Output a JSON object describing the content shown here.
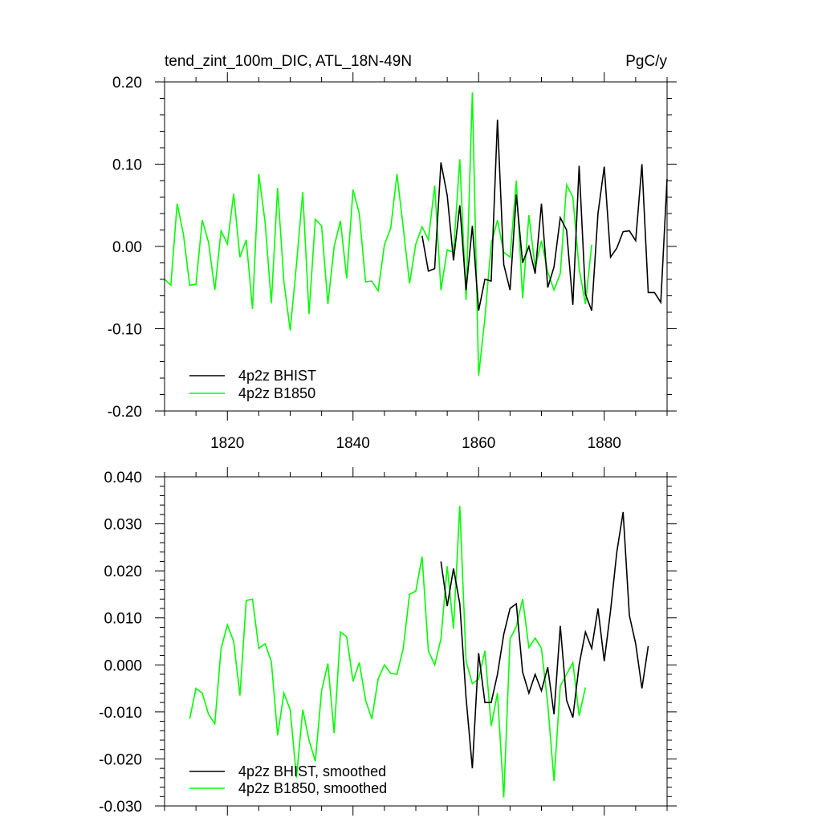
{
  "chart_data": [
    {
      "type": "line",
      "title": "tend_zint_100m_DIC, ATL_18N-49N",
      "units": "PgC/y",
      "xlim": [
        1810,
        1890
      ],
      "ylim": [
        -0.2,
        0.2
      ],
      "x_ticks": [
        1820,
        1840,
        1860,
        1880
      ],
      "x_tick_labels": [
        "1820",
        "1840",
        "1860",
        "1880"
      ],
      "y_ticks": [
        0.2,
        0.1,
        0.0,
        -0.1,
        -0.2
      ],
      "y_tick_labels": [
        "0.20",
        "0.10",
        "0.00",
        "-0.10",
        "-0.20"
      ],
      "legend_position": "bottom-left",
      "series": [
        {
          "name": "4p2z BHIST",
          "color": "#000000",
          "x_start": 1851,
          "values": [
            0.013,
            -0.03,
            -0.027,
            0.102,
            0.062,
            -0.017,
            0.05,
            -0.053,
            0.025,
            -0.078,
            -0.04,
            -0.042,
            0.154,
            -0.022,
            -0.053,
            0.063,
            -0.02,
            0.0,
            -0.033,
            0.052,
            -0.05,
            -0.025,
            0.035,
            0.02,
            -0.071,
            0.098,
            -0.058,
            -0.078,
            0.04,
            0.097,
            -0.013,
            -0.002,
            0.018,
            0.019,
            0.007,
            0.1,
            -0.056,
            -0.056,
            -0.068,
            0.082
          ]
        },
        {
          "name": "4p2z B1850",
          "color": "#00ff00",
          "x_start": 1810,
          "values": [
            -0.04,
            -0.047,
            0.052,
            0.015,
            -0.047,
            -0.046,
            0.032,
            0.005,
            -0.053,
            0.019,
            0.003,
            0.064,
            -0.013,
            0.008,
            -0.076,
            0.088,
            0.03,
            -0.069,
            0.071,
            -0.043,
            -0.102,
            -0.022,
            0.066,
            -0.082,
            0.033,
            0.025,
            -0.07,
            0.0,
            0.031,
            -0.039,
            0.069,
            0.04,
            -0.043,
            -0.042,
            -0.054,
            0.002,
            0.022,
            0.088,
            0.023,
            -0.045,
            0.003,
            0.024,
            0.008,
            0.074,
            -0.053,
            -0.004,
            -0.007,
            0.106,
            -0.065,
            0.187,
            -0.157,
            -0.087,
            0.003,
            0.032,
            -0.007,
            -0.013,
            0.08,
            -0.063,
            0.038,
            -0.026,
            0.007,
            -0.031,
            -0.053,
            -0.033,
            0.075,
            0.06,
            -0.027,
            -0.07,
            0.002
          ]
        }
      ]
    },
    {
      "type": "line",
      "xlim": [
        1810,
        1890
      ],
      "ylim": [
        -0.03,
        0.04
      ],
      "x_ticks": [
        1820,
        1840,
        1860,
        1880
      ],
      "y_ticks": [
        0.04,
        0.03,
        0.02,
        0.01,
        0.0,
        -0.01,
        -0.02,
        -0.03
      ],
      "y_tick_labels": [
        "0.040",
        "0.030",
        "0.020",
        "0.010",
        "0.000",
        "-0.010",
        "-0.020",
        "-0.030"
      ],
      "legend_position": "bottom-left",
      "series": [
        {
          "name": "4p2z BHIST, smoothed",
          "color": "#000000",
          "x_start": 1854,
          "values": [
            0.022,
            0.0125,
            0.0205,
            0.013,
            -0.007,
            -0.022,
            0.0025,
            -0.008,
            -0.008,
            -0.002,
            0.0065,
            0.012,
            0.013,
            -0.0015,
            -0.006,
            -0.002,
            -0.0055,
            -0.0005,
            -0.0105,
            0.0083,
            -0.0075,
            -0.0112,
            0.0,
            0.007,
            0.0035,
            0.012,
            0.0008,
            0.0115,
            0.024,
            0.0325,
            0.0105,
            0.0045,
            -0.005,
            0.004
          ]
        },
        {
          "name": "4p2z B1850, smoothed",
          "color": "#00ff00",
          "x_start": 1814,
          "values": [
            -0.0115,
            -0.005,
            -0.006,
            -0.0105,
            -0.0125,
            0.0035,
            0.0085,
            0.005,
            -0.0065,
            0.0137,
            0.014,
            0.0035,
            0.0045,
            0.0007,
            -0.015,
            -0.006,
            -0.0095,
            -0.024,
            -0.0095,
            -0.016,
            -0.0205,
            -0.0055,
            0.0003,
            -0.0145,
            0.007,
            0.006,
            -0.0035,
            0.0005,
            -0.0075,
            -0.0115,
            -0.003,
            0.0,
            -0.0018,
            -0.002,
            0.0035,
            0.015,
            0.0157,
            0.023,
            0.003,
            0.0,
            0.0055,
            0.021,
            0.0077,
            0.0338,
            0.0008,
            -0.004,
            -0.003,
            0.003,
            -0.013,
            -0.006,
            -0.0282,
            0.0055,
            0.0082,
            0.014,
            0.0037,
            0.0057,
            0.0035,
            -0.0083,
            -0.0247,
            -0.0045,
            -0.002,
            0.0005,
            -0.0108,
            -0.0048
          ]
        }
      ]
    }
  ]
}
